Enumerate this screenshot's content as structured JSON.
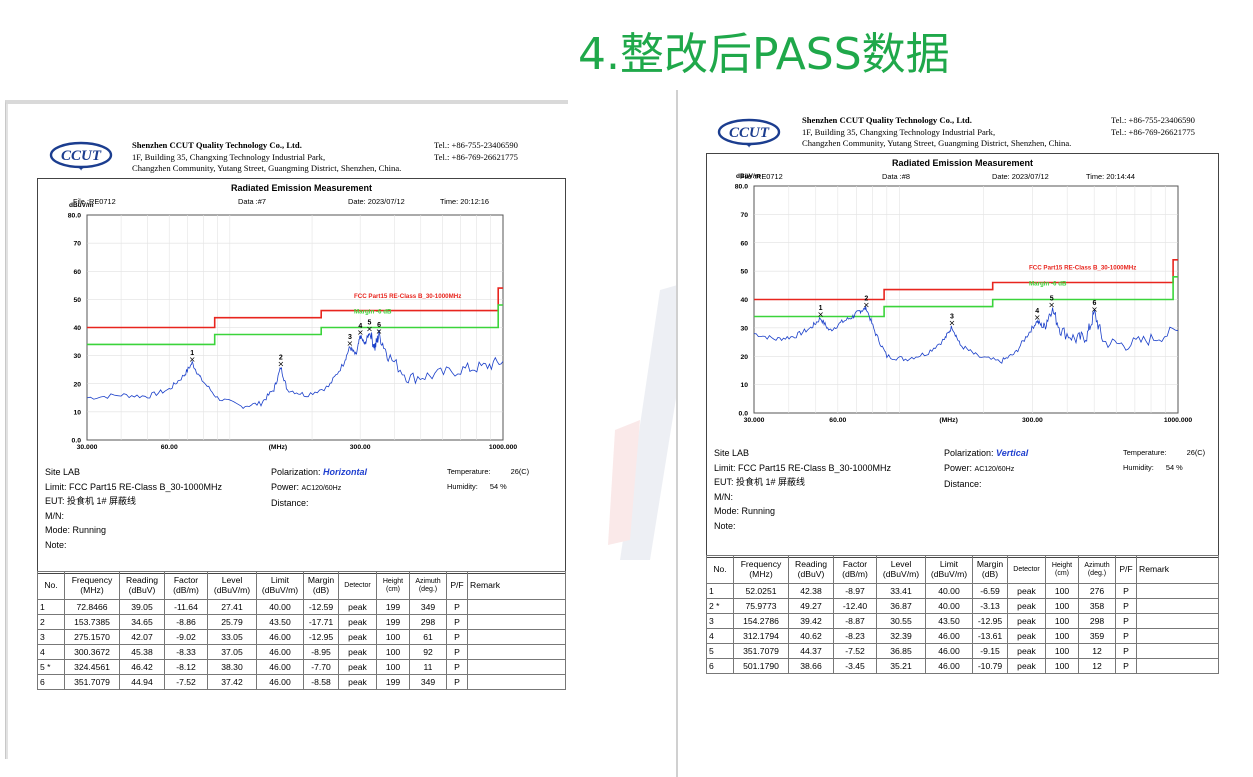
{
  "slide_title": "4.整改后PASS数据",
  "colors": {
    "title_green": "#1fa84a",
    "limit_red": "#e8251e",
    "margin_green": "#3bd43b",
    "trace_blue": "#1a3fc9",
    "polarization_blue": "#1f3fcf"
  },
  "icons": {
    "logo": "ccut-logo"
  },
  "reports": [
    {
      "company": {
        "logo_text": "CCUT",
        "name": "Shenzhen CCUT Quality Technology Co., Ltd.",
        "address1": "1F, Building 35, Changxing Technology Industrial Park,",
        "address2": "Changzhen Community, Yutang Street, Guangming District, Shenzhen, China.",
        "tel1": "Tel.: +86-755-23406590",
        "tel2": "Tel.: +86-769-26621775"
      },
      "title": "Radiated Emission Measurement",
      "file": "File :RE0712",
      "data": "Data :#7",
      "date": "Date: 2023/07/12",
      "time": "Time: 20:12:16",
      "unit": "dBuV/m",
      "mhz": "(MHz)",
      "limit_label": "FCC Part15 RE-Class B_30-1000MHz",
      "margin_label": "Margin -6 dB",
      "site": "Site  LAB",
      "limit_text": "Limit:  FCC Part15 RE-Class B_30-1000MHz",
      "eut": "EUT:  投食机 1# 屏蔽线",
      "mn": "M/N:",
      "mode": "Mode:  Running",
      "note": "Note:",
      "polarization_label": "Polarization:",
      "polarization": "Horizontal",
      "power_label": "Power:",
      "power": "AC120/60Hz",
      "distance": "Distance:",
      "temperature_label": "Temperature:",
      "temperature": "26(C)",
      "humidity_label": "Humidity:",
      "humidity": "54 %",
      "headers": [
        "No.",
        "Frequency\n(MHz)",
        "Reading\n(dBuV)",
        "Factor\n(dB/m)",
        "Level\n(dBuV/m)",
        "Limit\n(dBuV/m)",
        "Margin\n(dB)",
        "Detector",
        "Height\n(cm)",
        "Azimuth\n(deg.)",
        "P/F",
        "Remark"
      ],
      "rows": [
        [
          "1",
          "72.8466",
          "39.05",
          "-11.64",
          "27.41",
          "40.00",
          "-12.59",
          "peak",
          "199",
          "349",
          "P",
          ""
        ],
        [
          "2",
          "153.7385",
          "34.65",
          "-8.86",
          "25.79",
          "43.50",
          "-17.71",
          "peak",
          "199",
          "298",
          "P",
          ""
        ],
        [
          "3",
          "275.1570",
          "42.07",
          "-9.02",
          "33.05",
          "46.00",
          "-12.95",
          "peak",
          "100",
          "61",
          "P",
          ""
        ],
        [
          "4",
          "300.3672",
          "45.38",
          "-8.33",
          "37.05",
          "46.00",
          "-8.95",
          "peak",
          "100",
          "92",
          "P",
          ""
        ],
        [
          "5 *",
          "324.4561",
          "46.42",
          "-8.12",
          "38.30",
          "46.00",
          "-7.70",
          "peak",
          "100",
          "11",
          "P",
          ""
        ],
        [
          "6",
          "351.7079",
          "44.94",
          "-7.52",
          "37.42",
          "46.00",
          "-8.58",
          "peak",
          "199",
          "349",
          "P",
          ""
        ]
      ],
      "chart_data": {
        "type": "line",
        "xscale": "log",
        "xlim": [
          30,
          1000
        ],
        "ylim": [
          0,
          80
        ],
        "x_ticks": [
          "30.000",
          "60.00",
          "(MHz)",
          "300.00",
          "1000.000"
        ],
        "y_ticks": [
          "0.0",
          "10",
          "20",
          "30",
          "40",
          "50",
          "60",
          "70",
          "80.0"
        ],
        "ylabel": "dBuV/m",
        "limit_line": [
          [
            30,
            40
          ],
          [
            88,
            40
          ],
          [
            88,
            43.5
          ],
          [
            216,
            43.5
          ],
          [
            216,
            46
          ],
          [
            960,
            46
          ],
          [
            960,
            54
          ],
          [
            1000,
            54
          ]
        ],
        "margin_line": [
          [
            30,
            34
          ],
          [
            88,
            34
          ],
          [
            88,
            37.5
          ],
          [
            216,
            37.5
          ],
          [
            216,
            40
          ],
          [
            960,
            40
          ],
          [
            960,
            48
          ],
          [
            1000,
            48
          ]
        ],
        "trace": [
          [
            30,
            15
          ],
          [
            40,
            16
          ],
          [
            50,
            15.5
          ],
          [
            60,
            18
          ],
          [
            68,
            23
          ],
          [
            72.8,
            27.4
          ],
          [
            78,
            22
          ],
          [
            90,
            15
          ],
          [
            110,
            12
          ],
          [
            130,
            13
          ],
          [
            145,
            18
          ],
          [
            153.7,
            25.8
          ],
          [
            162,
            18
          ],
          [
            190,
            16
          ],
          [
            230,
            19
          ],
          [
            260,
            27
          ],
          [
            275,
            33
          ],
          [
            290,
            30
          ],
          [
            300,
            37
          ],
          [
            312,
            34
          ],
          [
            324,
            38.3
          ],
          [
            340,
            33
          ],
          [
            351.7,
            37.4
          ],
          [
            380,
            30
          ],
          [
            450,
            22
          ],
          [
            550,
            23
          ],
          [
            700,
            25
          ],
          [
            850,
            26
          ],
          [
            1000,
            28
          ]
        ],
        "markers": [
          {
            "label": "1",
            "x": 72.8466,
            "y": 27.41
          },
          {
            "label": "2",
            "x": 153.7385,
            "y": 25.79
          },
          {
            "label": "3",
            "x": 275.157,
            "y": 33.05
          },
          {
            "label": "4",
            "x": 300.3672,
            "y": 37.05
          },
          {
            "label": "5",
            "x": 324.4561,
            "y": 38.3
          },
          {
            "label": "6",
            "x": 351.7079,
            "y": 37.42
          }
        ]
      }
    },
    {
      "company": {
        "logo_text": "CCUT",
        "name": "Shenzhen CCUT Quality Technology Co., Ltd.",
        "address1": "1F, Building 35, Changxing Technology Industrial Park,",
        "address2": "Changzhen Community, Yutang Street, Guangming District, Shenzhen, China.",
        "tel1": "Tel.: +86-755-23406590",
        "tel2": "Tel.: +86-769-26621775"
      },
      "title": "Radiated Emission Measurement",
      "file": "File :RE0712",
      "data": "Data :#8",
      "date": "Date: 2023/07/12",
      "time": "Time: 20:14:44",
      "unit": "dBuV/m",
      "mhz": "(MHz)",
      "limit_label": "FCC Part15 RE-Class B_30-1000MHz",
      "margin_label": "Margin -6 dB",
      "site": "Site  LAB",
      "limit_text": "Limit:  FCC Part15 RE-Class B_30-1000MHz",
      "eut": "EUT:  投食机 1# 屏蔽线",
      "mn": "M/N:",
      "mode": "Mode:  Running",
      "note": "Note:",
      "polarization_label": "Polarization:",
      "polarization": "Vertical",
      "power_label": "Power:",
      "power": "AC120/60Hz",
      "distance": "Distance:",
      "temperature_label": "Temperature:",
      "temperature": "26(C)",
      "humidity_label": "Humidity:",
      "humidity": "54 %",
      "headers": [
        "No.",
        "Frequency\n(MHz)",
        "Reading\n(dBuV)",
        "Factor\n(dB/m)",
        "Level\n(dBuV/m)",
        "Limit\n(dBuV/m)",
        "Margin\n(dB)",
        "Detector",
        "Height\n(cm)",
        "Azimuth\n(deg.)",
        "P/F",
        "Remark"
      ],
      "rows": [
        [
          "1",
          "52.0251",
          "42.38",
          "-8.97",
          "33.41",
          "40.00",
          "-6.59",
          "peak",
          "100",
          "276",
          "P",
          ""
        ],
        [
          "2 *",
          "75.9773",
          "49.27",
          "-12.40",
          "36.87",
          "40.00",
          "-3.13",
          "peak",
          "100",
          "358",
          "P",
          ""
        ],
        [
          "3",
          "154.2786",
          "39.42",
          "-8.87",
          "30.55",
          "43.50",
          "-12.95",
          "peak",
          "100",
          "298",
          "P",
          ""
        ],
        [
          "4",
          "312.1794",
          "40.62",
          "-8.23",
          "32.39",
          "46.00",
          "-13.61",
          "peak",
          "100",
          "359",
          "P",
          ""
        ],
        [
          "5",
          "351.7079",
          "44.37",
          "-7.52",
          "36.85",
          "46.00",
          "-9.15",
          "peak",
          "100",
          "12",
          "P",
          ""
        ],
        [
          "6",
          "501.1790",
          "38.66",
          "-3.45",
          "35.21",
          "46.00",
          "-10.79",
          "peak",
          "100",
          "12",
          "P",
          ""
        ]
      ],
      "chart_data": {
        "type": "line",
        "xscale": "log",
        "xlim": [
          30,
          1000
        ],
        "ylim": [
          0,
          80
        ],
        "x_ticks": [
          "30.000",
          "60.00",
          "(MHz)",
          "300.00",
          "1000.000"
        ],
        "y_ticks": [
          "0.0",
          "10",
          "20",
          "30",
          "40",
          "50",
          "60",
          "70",
          "80.0"
        ],
        "ylabel": "dBuV/m",
        "limit_line": [
          [
            30,
            40
          ],
          [
            88,
            40
          ],
          [
            88,
            43.5
          ],
          [
            216,
            43.5
          ],
          [
            216,
            46
          ],
          [
            960,
            46
          ],
          [
            960,
            54
          ],
          [
            1000,
            54
          ]
        ],
        "margin_line": [
          [
            30,
            34
          ],
          [
            88,
            34
          ],
          [
            88,
            37.5
          ],
          [
            216,
            37.5
          ],
          [
            216,
            40
          ],
          [
            960,
            40
          ],
          [
            960,
            48
          ],
          [
            1000,
            48
          ]
        ],
        "trace": [
          [
            30,
            28
          ],
          [
            36,
            26
          ],
          [
            42,
            27
          ],
          [
            48,
            30
          ],
          [
            52,
            33.4
          ],
          [
            56,
            29
          ],
          [
            62,
            32
          ],
          [
            68,
            34
          ],
          [
            72,
            36
          ],
          [
            76,
            36.9
          ],
          [
            82,
            28
          ],
          [
            90,
            20
          ],
          [
            105,
            19
          ],
          [
            125,
            21
          ],
          [
            145,
            26
          ],
          [
            154.3,
            30.5
          ],
          [
            165,
            24
          ],
          [
            190,
            20
          ],
          [
            230,
            18
          ],
          [
            260,
            21
          ],
          [
            290,
            28
          ],
          [
            312,
            32.4
          ],
          [
            330,
            30
          ],
          [
            351.7,
            36.9
          ],
          [
            380,
            29
          ],
          [
            430,
            26
          ],
          [
            470,
            27
          ],
          [
            501.2,
            35.2
          ],
          [
            540,
            25
          ],
          [
            650,
            24
          ],
          [
            800,
            26
          ],
          [
            1000,
            29
          ]
        ],
        "markers": [
          {
            "label": "1",
            "x": 52.0251,
            "y": 33.41
          },
          {
            "label": "2",
            "x": 75.9773,
            "y": 36.87
          },
          {
            "label": "3",
            "x": 154.2786,
            "y": 30.55
          },
          {
            "label": "4",
            "x": 312.1794,
            "y": 32.39
          },
          {
            "label": "5",
            "x": 351.7079,
            "y": 36.85
          },
          {
            "label": "6",
            "x": 501.179,
            "y": 35.21
          }
        ]
      }
    }
  ]
}
